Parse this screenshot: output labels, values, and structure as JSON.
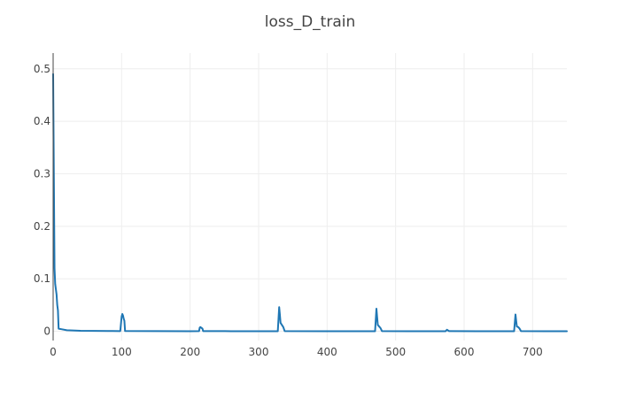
{
  "chart_data": {
    "type": "line",
    "title": "loss_D_train",
    "xlabel": "",
    "ylabel": "",
    "xlim": [
      0,
      750
    ],
    "ylim": [
      -0.0176,
      0.53
    ],
    "x_ticks": [
      0,
      100,
      200,
      300,
      400,
      500,
      600,
      700
    ],
    "y_ticks": [
      0,
      0.1,
      0.2,
      0.3,
      0.4,
      0.5
    ],
    "y_tick_labels": [
      "0",
      "0.1",
      "0.2",
      "0.3",
      "0.4",
      "0.5"
    ],
    "grid": true,
    "legend": "none",
    "series": [
      {
        "color": "#1f77b4",
        "points": [
          [
            0,
            0.49
          ],
          [
            1,
            0.3
          ],
          [
            2,
            0.12
          ],
          [
            3,
            0.09
          ],
          [
            5,
            0.07
          ],
          [
            6,
            0.05
          ],
          [
            7,
            0.04
          ],
          [
            8,
            0.005
          ],
          [
            12,
            0.004
          ],
          [
            20,
            0.002
          ],
          [
            40,
            0.001
          ],
          [
            60,
            0.0008
          ],
          [
            80,
            0.0005
          ],
          [
            98,
            0.0004
          ],
          [
            100,
            0.028
          ],
          [
            101,
            0.033
          ],
          [
            102,
            0.03
          ],
          [
            103,
            0.024
          ],
          [
            104,
            0.02
          ],
          [
            105,
            0.0005
          ],
          [
            150,
            0.0003
          ],
          [
            200,
            0.0002
          ],
          [
            213,
            0.0003
          ],
          [
            214,
            0.007
          ],
          [
            215,
            0.008
          ],
          [
            216,
            0.007
          ],
          [
            218,
            0.005
          ],
          [
            219,
            0.0004
          ],
          [
            260,
            0.0002
          ],
          [
            300,
            0.0002
          ],
          [
            328,
            0.0002
          ],
          [
            330,
            0.046
          ],
          [
            331,
            0.032
          ],
          [
            332,
            0.016
          ],
          [
            334,
            0.012
          ],
          [
            336,
            0.008
          ],
          [
            338,
            0.0004
          ],
          [
            400,
            0.0002
          ],
          [
            470,
            0.0002
          ],
          [
            472,
            0.043
          ],
          [
            473,
            0.027
          ],
          [
            474,
            0.012
          ],
          [
            476,
            0.009
          ],
          [
            478,
            0.006
          ],
          [
            480,
            0.0004
          ],
          [
            520,
            0.0002
          ],
          [
            573,
            0.0002
          ],
          [
            575,
            0.003
          ],
          [
            576,
            0.002
          ],
          [
            578,
            0.0003
          ],
          [
            620,
            0.0002
          ],
          [
            673,
            0.0002
          ],
          [
            675,
            0.032
          ],
          [
            676,
            0.02
          ],
          [
            677,
            0.009
          ],
          [
            679,
            0.008
          ],
          [
            681,
            0.005
          ],
          [
            683,
            0.0004
          ],
          [
            720,
            0.0002
          ],
          [
            750,
            0.0002
          ]
        ]
      }
    ]
  }
}
